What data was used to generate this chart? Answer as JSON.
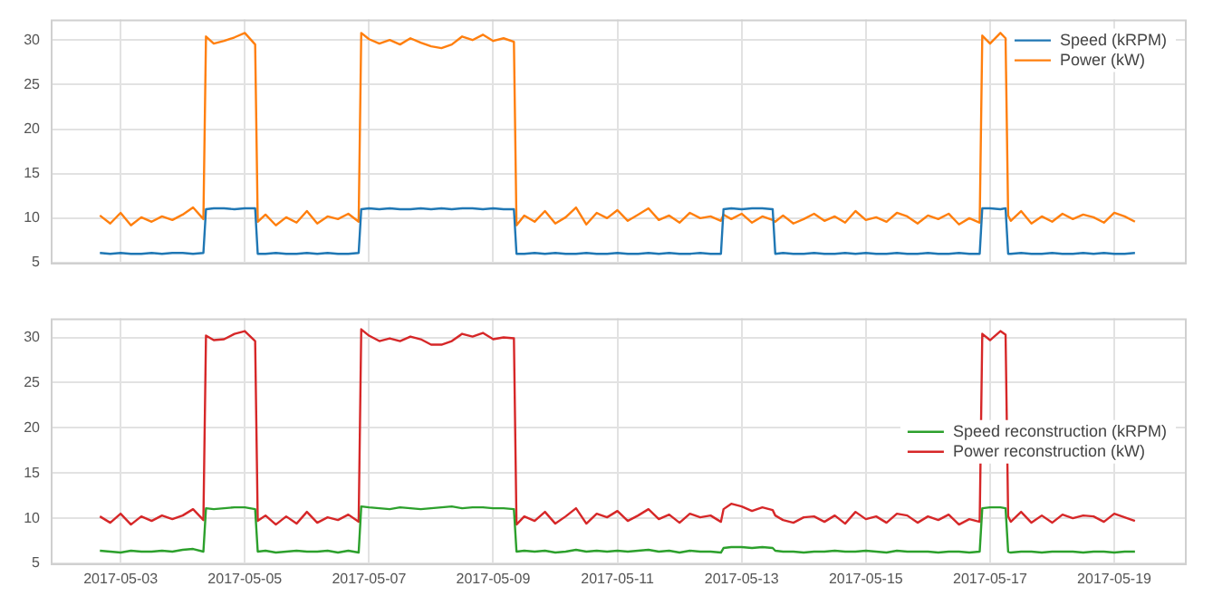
{
  "chart_data": [
    {
      "type": "line",
      "x": [
        "2017-05-02T16:00",
        "2017-05-02T20:00",
        "2017-05-03T00:00",
        "2017-05-03T04:00",
        "2017-05-03T08:00",
        "2017-05-03T12:00",
        "2017-05-03T16:00",
        "2017-05-03T20:00",
        "2017-05-04T00:00",
        "2017-05-04T04:00",
        "2017-05-04T08:00",
        "2017-05-04T09:00",
        "2017-05-04T12:00",
        "2017-05-04T16:00",
        "2017-05-04T20:00",
        "2017-05-05T00:00",
        "2017-05-05T04:00",
        "2017-05-05T05:00",
        "2017-05-05T08:00",
        "2017-05-05T12:00",
        "2017-05-05T16:00",
        "2017-05-05T20:00",
        "2017-05-06T00:00",
        "2017-05-06T04:00",
        "2017-05-06T08:00",
        "2017-05-06T12:00",
        "2017-05-06T16:00",
        "2017-05-06T20:00",
        "2017-05-06T21:00",
        "2017-05-07T00:00",
        "2017-05-07T04:00",
        "2017-05-07T08:00",
        "2017-05-07T12:00",
        "2017-05-07T16:00",
        "2017-05-07T20:00",
        "2017-05-08T00:00",
        "2017-05-08T04:00",
        "2017-05-08T08:00",
        "2017-05-08T12:00",
        "2017-05-08T16:00",
        "2017-05-08T20:00",
        "2017-05-09T00:00",
        "2017-05-09T04:00",
        "2017-05-09T08:00",
        "2017-05-09T09:00",
        "2017-05-09T12:00",
        "2017-05-09T16:00",
        "2017-05-09T20:00",
        "2017-05-10T00:00",
        "2017-05-10T04:00",
        "2017-05-10T08:00",
        "2017-05-10T12:00",
        "2017-05-10T16:00",
        "2017-05-10T20:00",
        "2017-05-11T00:00",
        "2017-05-11T04:00",
        "2017-05-11T08:00",
        "2017-05-11T12:00",
        "2017-05-11T16:00",
        "2017-05-11T20:00",
        "2017-05-12T00:00",
        "2017-05-12T04:00",
        "2017-05-12T08:00",
        "2017-05-12T12:00",
        "2017-05-12T16:00",
        "2017-05-12T17:00",
        "2017-05-12T20:00",
        "2017-05-13T00:00",
        "2017-05-13T04:00",
        "2017-05-13T08:00",
        "2017-05-13T12:00",
        "2017-05-13T13:00",
        "2017-05-13T16:00",
        "2017-05-13T20:00",
        "2017-05-14T00:00",
        "2017-05-14T04:00",
        "2017-05-14T08:00",
        "2017-05-14T12:00",
        "2017-05-14T16:00",
        "2017-05-14T20:00",
        "2017-05-15T00:00",
        "2017-05-15T04:00",
        "2017-05-15T08:00",
        "2017-05-15T12:00",
        "2017-05-15T16:00",
        "2017-05-15T20:00",
        "2017-05-16T00:00",
        "2017-05-16T04:00",
        "2017-05-16T08:00",
        "2017-05-16T12:00",
        "2017-05-16T16:00",
        "2017-05-16T20:00",
        "2017-05-16T21:00",
        "2017-05-17T00:00",
        "2017-05-17T04:00",
        "2017-05-17T06:00",
        "2017-05-17T07:00",
        "2017-05-17T08:00",
        "2017-05-17T12:00",
        "2017-05-17T16:00",
        "2017-05-17T20:00",
        "2017-05-18T00:00",
        "2017-05-18T04:00",
        "2017-05-18T08:00",
        "2017-05-18T12:00",
        "2017-05-18T16:00",
        "2017-05-18T20:00",
        "2017-05-19T00:00",
        "2017-05-19T04:00",
        "2017-05-19T08:00"
      ],
      "series": [
        {
          "name": "Speed (kRPM)",
          "color": "#1f77b4",
          "values": [
            6.1,
            6.0,
            6.1,
            6.0,
            6.0,
            6.1,
            6.0,
            6.1,
            6.1,
            6.0,
            6.1,
            11.0,
            11.1,
            11.1,
            11.0,
            11.1,
            11.1,
            6.0,
            6.0,
            6.1,
            6.0,
            6.0,
            6.1,
            6.0,
            6.1,
            6.0,
            6.0,
            6.1,
            11.0,
            11.1,
            11.0,
            11.1,
            11.0,
            11.0,
            11.1,
            11.0,
            11.1,
            11.0,
            11.1,
            11.1,
            11.0,
            11.1,
            11.0,
            11.0,
            6.0,
            6.0,
            6.1,
            6.0,
            6.1,
            6.0,
            6.0,
            6.1,
            6.0,
            6.0,
            6.1,
            6.0,
            6.0,
            6.1,
            6.0,
            6.1,
            6.0,
            6.0,
            6.1,
            6.0,
            6.0,
            11.0,
            11.1,
            11.0,
            11.1,
            11.1,
            11.0,
            6.0,
            6.1,
            6.0,
            6.0,
            6.1,
            6.0,
            6.0,
            6.1,
            6.0,
            6.1,
            6.0,
            6.0,
            6.1,
            6.0,
            6.0,
            6.1,
            6.0,
            6.0,
            6.1,
            6.0,
            6.0,
            11.1,
            11.1,
            11.0,
            11.1,
            6.0,
            6.0,
            6.1,
            6.0,
            6.0,
            6.1,
            6.0,
            6.0,
            6.1,
            6.0,
            6.1,
            6.0,
            6.0,
            6.1
          ]
        },
        {
          "name": "Power (kW)",
          "color": "#ff7f0e",
          "values": [
            10.3,
            9.4,
            10.6,
            9.2,
            10.1,
            9.6,
            10.2,
            9.8,
            10.4,
            11.2,
            9.9,
            30.4,
            29.6,
            29.9,
            30.3,
            30.8,
            29.5,
            9.6,
            10.4,
            9.2,
            10.1,
            9.5,
            10.8,
            9.4,
            10.2,
            9.9,
            10.5,
            9.6,
            30.8,
            30.1,
            29.6,
            30.0,
            29.5,
            30.2,
            29.7,
            29.3,
            29.1,
            29.5,
            30.4,
            30.0,
            30.6,
            29.9,
            30.2,
            29.8,
            9.2,
            10.3,
            9.6,
            10.8,
            9.4,
            10.1,
            11.2,
            9.3,
            10.6,
            10.0,
            10.9,
            9.7,
            10.4,
            11.1,
            9.8,
            10.3,
            9.5,
            10.6,
            10.0,
            10.2,
            9.7,
            10.4,
            9.9,
            10.5,
            9.5,
            10.2,
            9.8,
            9.6,
            10.3,
            9.4,
            9.9,
            10.5,
            9.7,
            10.2,
            9.5,
            10.8,
            9.8,
            10.1,
            9.6,
            10.6,
            10.2,
            9.4,
            10.3,
            9.9,
            10.5,
            9.3,
            10.0,
            9.5,
            30.5,
            29.6,
            30.8,
            30.2,
            10.3,
            9.7,
            10.8,
            9.4,
            10.2,
            9.6,
            10.5,
            9.9,
            10.4,
            10.1,
            9.5,
            10.6,
            10.2,
            9.6
          ]
        }
      ],
      "xlim": [
        "2017-05-01T21:00",
        "2017-05-20T04:00"
      ],
      "xticks": [
        "2017-05-03",
        "2017-05-05",
        "2017-05-07",
        "2017-05-09",
        "2017-05-11",
        "2017-05-13",
        "2017-05-15",
        "2017-05-17",
        "2017-05-19"
      ],
      "ylim": [
        4.8,
        32.3
      ],
      "yticks": [
        5,
        10,
        15,
        20,
        25,
        30
      ],
      "grid": true,
      "legend": "top right",
      "tick_labels": "y"
    },
    {
      "type": "line",
      "x": [
        "2017-05-02T16:00",
        "2017-05-02T20:00",
        "2017-05-03T00:00",
        "2017-05-03T04:00",
        "2017-05-03T08:00",
        "2017-05-03T12:00",
        "2017-05-03T16:00",
        "2017-05-03T20:00",
        "2017-05-04T00:00",
        "2017-05-04T04:00",
        "2017-05-04T08:00",
        "2017-05-04T09:00",
        "2017-05-04T12:00",
        "2017-05-04T16:00",
        "2017-05-04T20:00",
        "2017-05-05T00:00",
        "2017-05-05T04:00",
        "2017-05-05T05:00",
        "2017-05-05T08:00",
        "2017-05-05T12:00",
        "2017-05-05T16:00",
        "2017-05-05T20:00",
        "2017-05-06T00:00",
        "2017-05-06T04:00",
        "2017-05-06T08:00",
        "2017-05-06T12:00",
        "2017-05-06T16:00",
        "2017-05-06T20:00",
        "2017-05-06T21:00",
        "2017-05-07T00:00",
        "2017-05-07T04:00",
        "2017-05-07T08:00",
        "2017-05-07T12:00",
        "2017-05-07T16:00",
        "2017-05-07T20:00",
        "2017-05-08T00:00",
        "2017-05-08T04:00",
        "2017-05-08T08:00",
        "2017-05-08T12:00",
        "2017-05-08T16:00",
        "2017-05-08T20:00",
        "2017-05-09T00:00",
        "2017-05-09T04:00",
        "2017-05-09T08:00",
        "2017-05-09T09:00",
        "2017-05-09T12:00",
        "2017-05-09T16:00",
        "2017-05-09T20:00",
        "2017-05-10T00:00",
        "2017-05-10T04:00",
        "2017-05-10T08:00",
        "2017-05-10T12:00",
        "2017-05-10T16:00",
        "2017-05-10T20:00",
        "2017-05-11T00:00",
        "2017-05-11T04:00",
        "2017-05-11T08:00",
        "2017-05-11T12:00",
        "2017-05-11T16:00",
        "2017-05-11T20:00",
        "2017-05-12T00:00",
        "2017-05-12T04:00",
        "2017-05-12T08:00",
        "2017-05-12T12:00",
        "2017-05-12T16:00",
        "2017-05-12T17:00",
        "2017-05-12T20:00",
        "2017-05-13T00:00",
        "2017-05-13T04:00",
        "2017-05-13T08:00",
        "2017-05-13T12:00",
        "2017-05-13T13:00",
        "2017-05-13T16:00",
        "2017-05-13T20:00",
        "2017-05-14T00:00",
        "2017-05-14T04:00",
        "2017-05-14T08:00",
        "2017-05-14T12:00",
        "2017-05-14T16:00",
        "2017-05-14T20:00",
        "2017-05-15T00:00",
        "2017-05-15T04:00",
        "2017-05-15T08:00",
        "2017-05-15T12:00",
        "2017-05-15T16:00",
        "2017-05-15T20:00",
        "2017-05-16T00:00",
        "2017-05-16T04:00",
        "2017-05-16T08:00",
        "2017-05-16T12:00",
        "2017-05-16T16:00",
        "2017-05-16T20:00",
        "2017-05-16T21:00",
        "2017-05-17T00:00",
        "2017-05-17T04:00",
        "2017-05-17T06:00",
        "2017-05-17T07:00",
        "2017-05-17T08:00",
        "2017-05-17T12:00",
        "2017-05-17T16:00",
        "2017-05-17T20:00",
        "2017-05-18T00:00",
        "2017-05-18T04:00",
        "2017-05-18T08:00",
        "2017-05-18T12:00",
        "2017-05-18T16:00",
        "2017-05-18T20:00",
        "2017-05-19T00:00",
        "2017-05-19T04:00",
        "2017-05-19T08:00"
      ],
      "series": [
        {
          "name": "Speed reconstruction (kRPM)",
          "color": "#2ca02c",
          "values": [
            6.4,
            6.3,
            6.2,
            6.4,
            6.3,
            6.3,
            6.4,
            6.3,
            6.5,
            6.6,
            6.3,
            11.1,
            11.0,
            11.1,
            11.2,
            11.2,
            11.0,
            6.3,
            6.4,
            6.2,
            6.3,
            6.4,
            6.3,
            6.3,
            6.4,
            6.2,
            6.4,
            6.2,
            11.3,
            11.2,
            11.1,
            11.0,
            11.2,
            11.1,
            11.0,
            11.1,
            11.2,
            11.3,
            11.1,
            11.2,
            11.2,
            11.1,
            11.1,
            11.0,
            6.3,
            6.4,
            6.3,
            6.4,
            6.2,
            6.3,
            6.5,
            6.3,
            6.4,
            6.3,
            6.4,
            6.3,
            6.4,
            6.5,
            6.3,
            6.4,
            6.2,
            6.4,
            6.3,
            6.3,
            6.2,
            6.7,
            6.8,
            6.8,
            6.7,
            6.8,
            6.7,
            6.4,
            6.3,
            6.3,
            6.2,
            6.3,
            6.3,
            6.4,
            6.3,
            6.3,
            6.4,
            6.3,
            6.2,
            6.4,
            6.3,
            6.3,
            6.3,
            6.2,
            6.3,
            6.3,
            6.2,
            6.3,
            11.1,
            11.2,
            11.2,
            11.1,
            6.3,
            6.2,
            6.3,
            6.3,
            6.2,
            6.3,
            6.3,
            6.3,
            6.2,
            6.3,
            6.3,
            6.2,
            6.3,
            6.3
          ]
        },
        {
          "name": "Power reconstruction (kW)",
          "color": "#d62728",
          "values": [
            10.2,
            9.5,
            10.5,
            9.3,
            10.2,
            9.7,
            10.3,
            9.9,
            10.3,
            11.0,
            9.8,
            30.2,
            29.7,
            29.8,
            30.4,
            30.7,
            29.6,
            9.7,
            10.3,
            9.3,
            10.2,
            9.4,
            10.7,
            9.5,
            10.1,
            9.8,
            10.4,
            9.6,
            30.9,
            30.2,
            29.6,
            29.9,
            29.6,
            30.1,
            29.8,
            29.2,
            29.2,
            29.6,
            30.4,
            30.1,
            30.5,
            29.8,
            30.0,
            29.9,
            9.3,
            10.2,
            9.7,
            10.7,
            9.4,
            10.2,
            11.1,
            9.4,
            10.5,
            10.1,
            10.8,
            9.7,
            10.3,
            11.0,
            9.9,
            10.4,
            9.5,
            10.5,
            10.1,
            10.3,
            9.6,
            11.0,
            11.6,
            11.3,
            10.8,
            11.2,
            10.9,
            10.3,
            9.8,
            9.5,
            10.1,
            10.2,
            9.6,
            10.3,
            9.4,
            10.7,
            9.9,
            10.2,
            9.5,
            10.5,
            10.3,
            9.5,
            10.2,
            9.8,
            10.4,
            9.3,
            9.9,
            9.6,
            30.4,
            29.7,
            30.7,
            30.3,
            10.2,
            9.6,
            10.7,
            9.5,
            10.3,
            9.5,
            10.4,
            10.0,
            10.3,
            10.2,
            9.6,
            10.5,
            10.1,
            9.7
          ]
        }
      ],
      "xlim": [
        "2017-05-01T21:00",
        "2017-05-20T04:00"
      ],
      "xticks": [
        "2017-05-03",
        "2017-05-05",
        "2017-05-07",
        "2017-05-09",
        "2017-05-11",
        "2017-05-13",
        "2017-05-15",
        "2017-05-17",
        "2017-05-19"
      ],
      "ylim": [
        4.8,
        32.1
      ],
      "yticks": [
        5,
        10,
        15,
        20,
        25,
        30
      ],
      "grid": true,
      "legend": "right"
    }
  ]
}
